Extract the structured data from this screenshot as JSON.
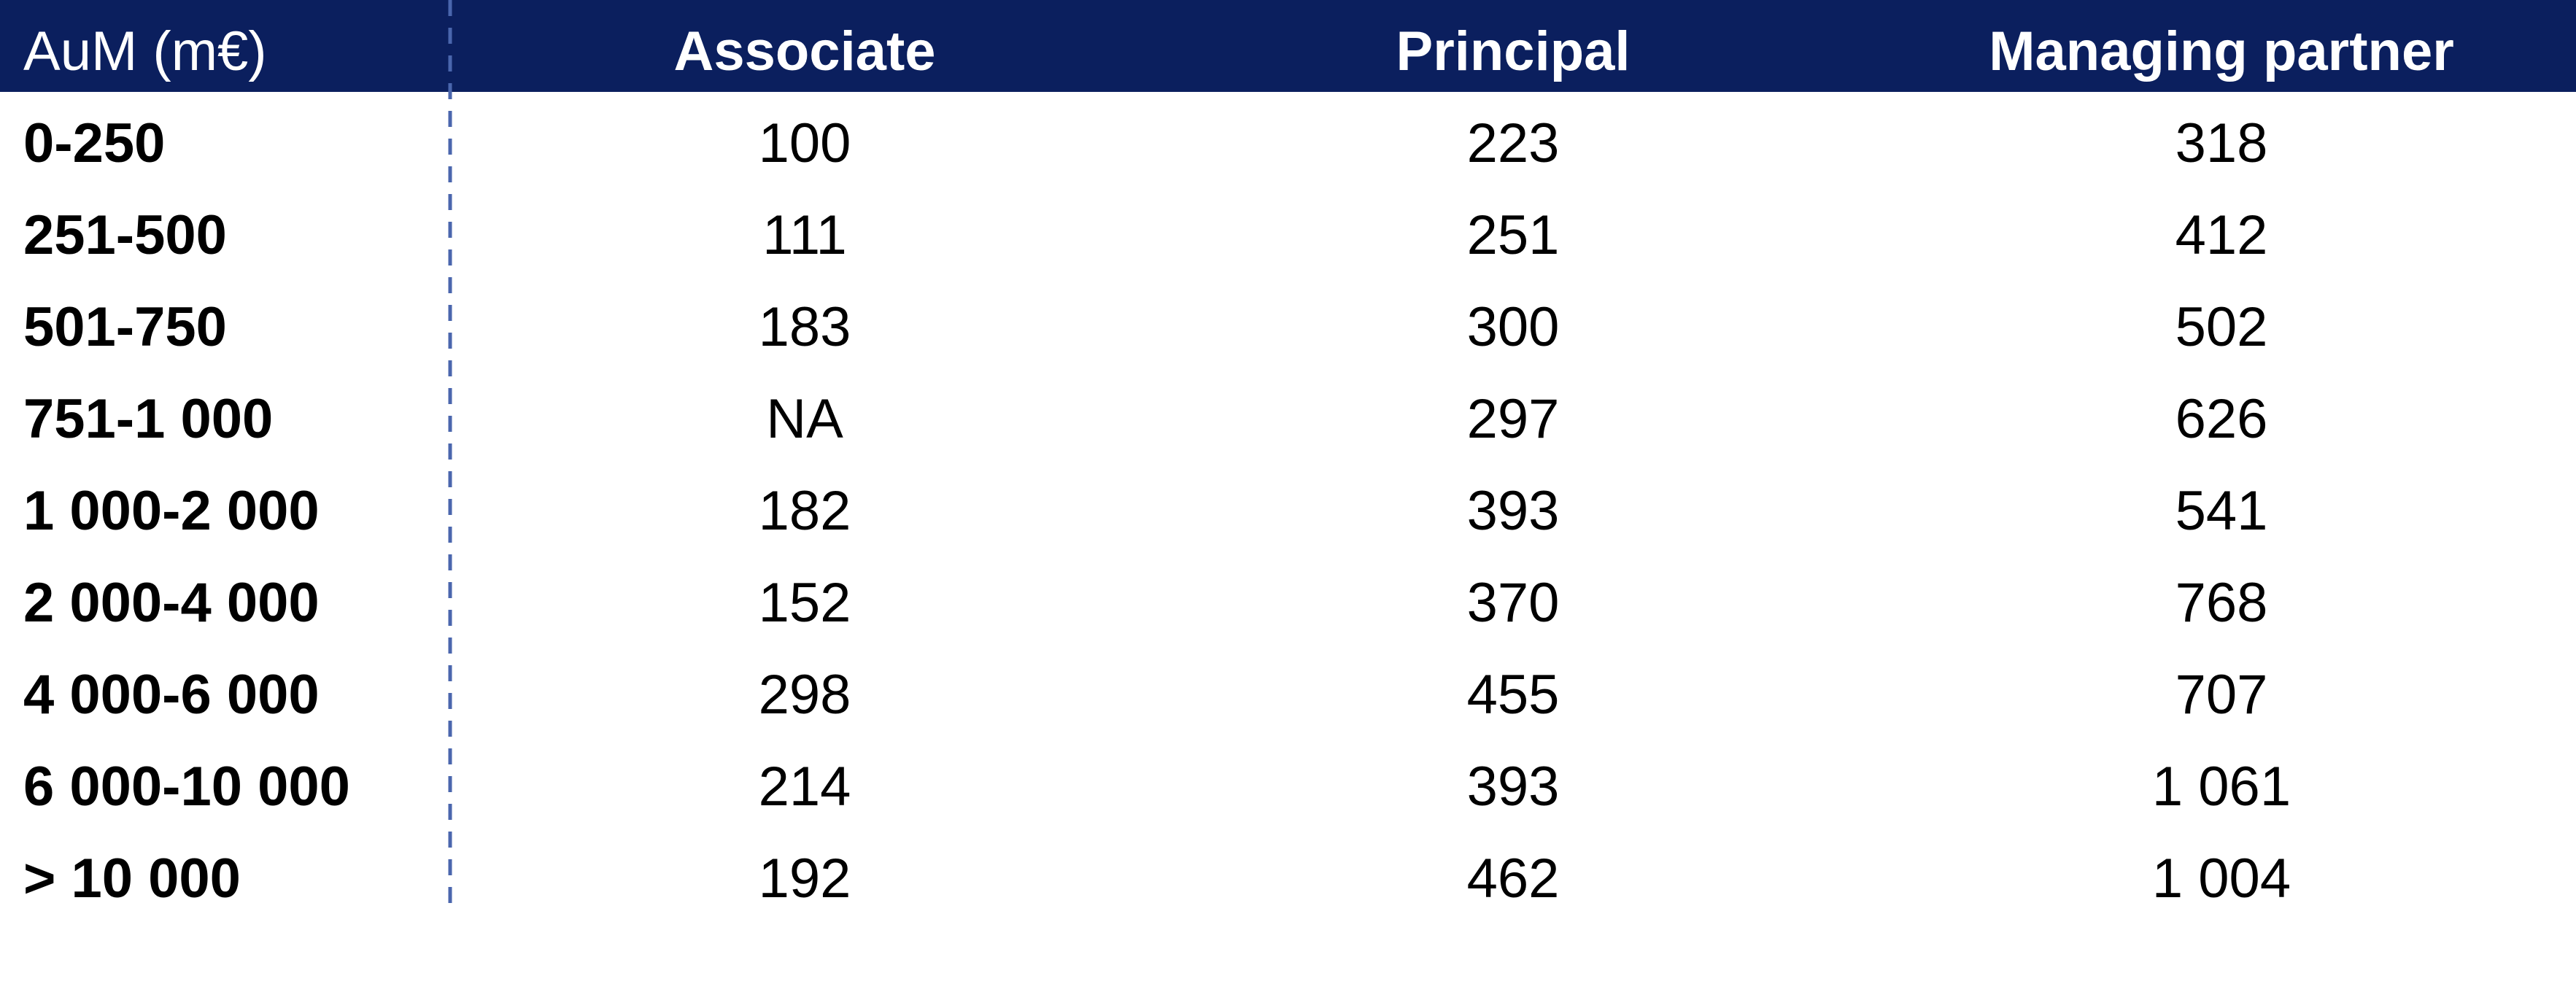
{
  "table": {
    "header": [
      "AuM (m€)",
      "Associate",
      "Principal",
      "Managing partner"
    ],
    "rows": [
      [
        "0-250",
        "100",
        "223",
        "318"
      ],
      [
        "251-500",
        "111",
        "251",
        "412"
      ],
      [
        "501-750",
        "183",
        "300",
        "502"
      ],
      [
        "751-1 000",
        "NA",
        "297",
        "626"
      ],
      [
        "1 000-2 000",
        "182",
        "393",
        "541"
      ],
      [
        "2 000-4 000",
        "152",
        "370",
        "768"
      ],
      [
        "4 000-6 000",
        "298",
        "455",
        "707"
      ],
      [
        "6 000-10 000",
        "214",
        "393",
        "1 061"
      ],
      [
        "> 10 000",
        "192",
        "462",
        "1 004"
      ]
    ]
  }
}
